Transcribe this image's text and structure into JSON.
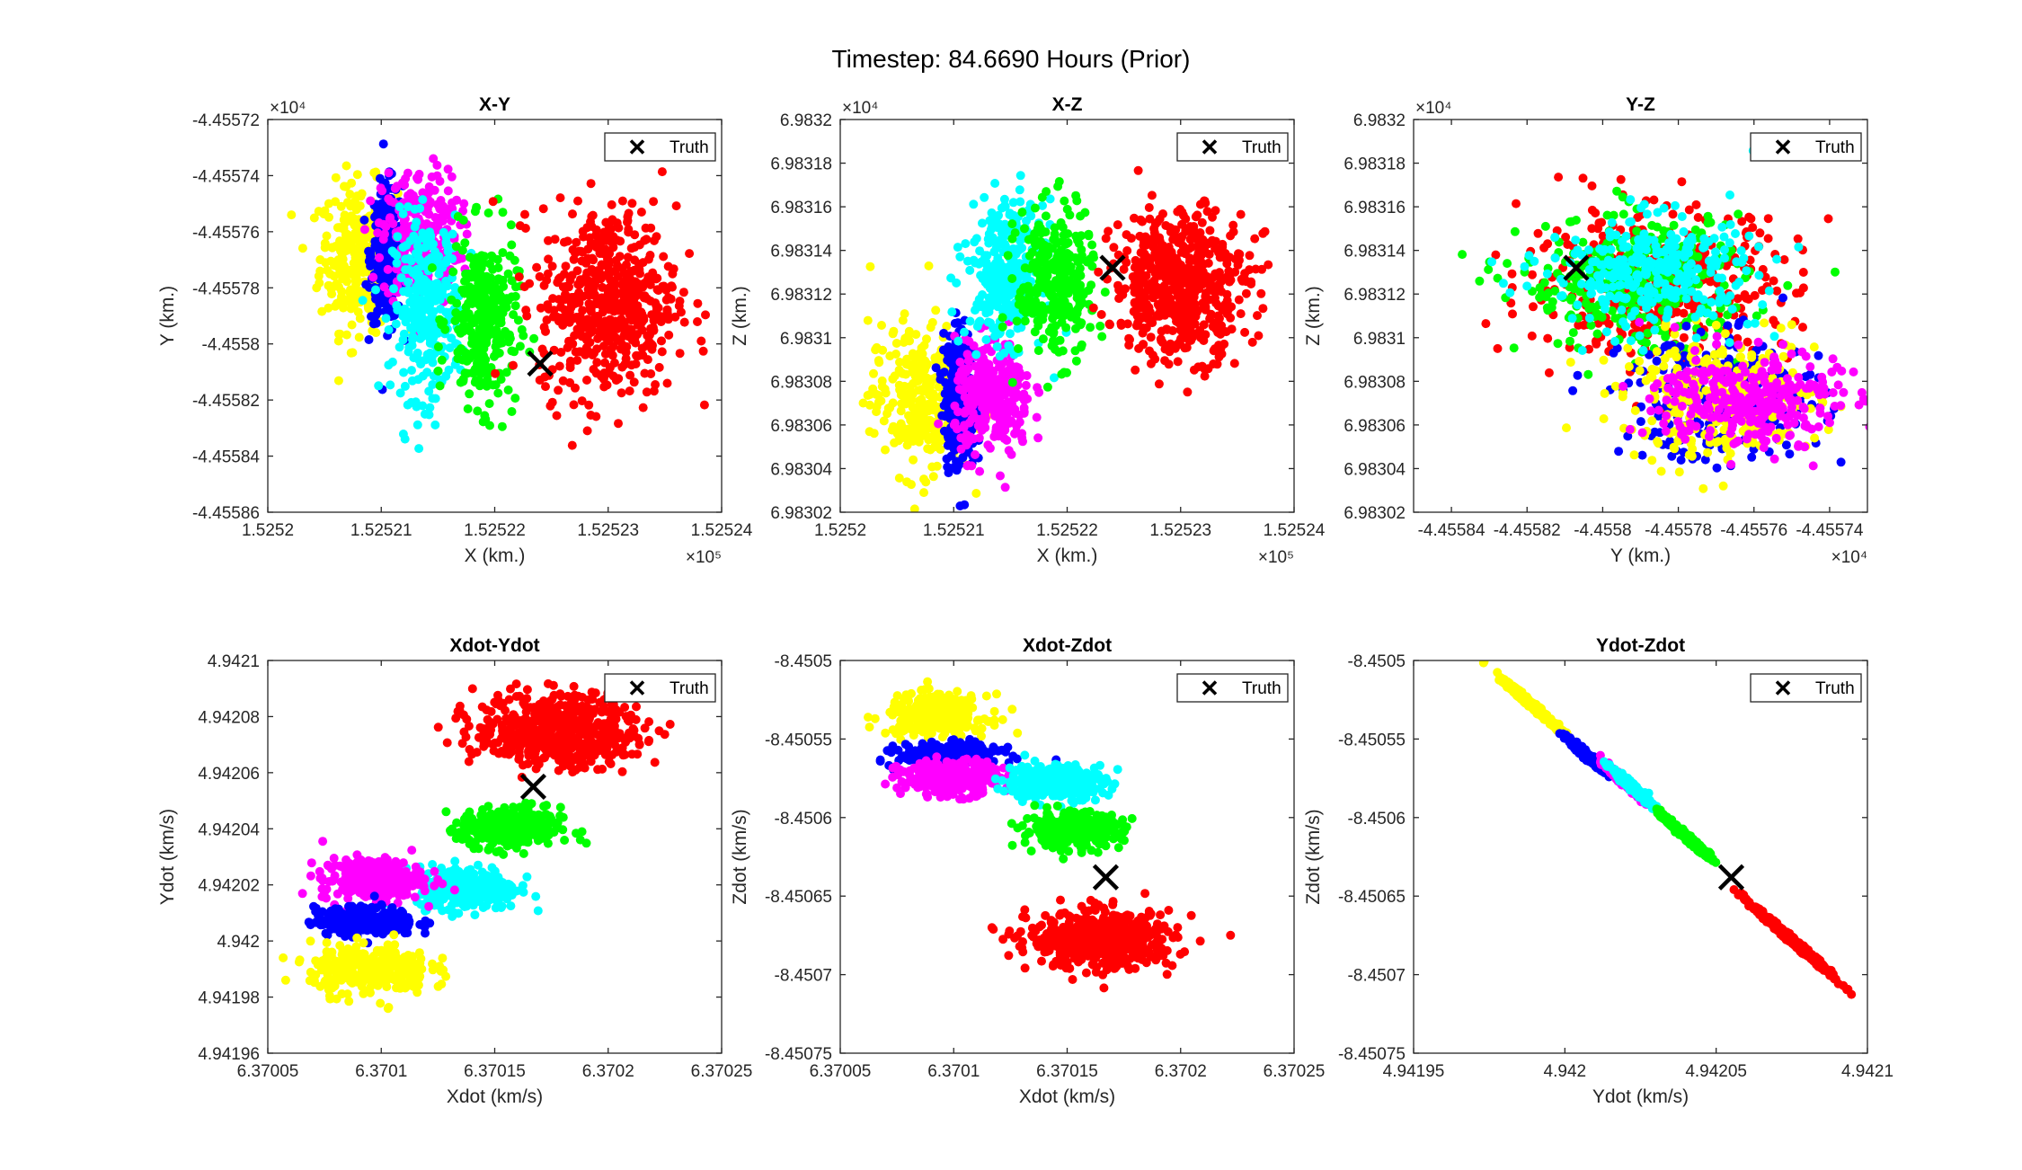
{
  "figure": {
    "title": "Timestep: 84.6690 Hours (Prior)"
  },
  "legend": {
    "label": "Truth",
    "marker": "x-mark-icon",
    "placement": "top-right"
  },
  "series_colors": [
    "#ffff00",
    "#0000ff",
    "#ff00ff",
    "#00ffff",
    "#00ff00",
    "#ff0000"
  ],
  "chart_data": [
    {
      "type": "scatter",
      "title": "X-Y",
      "xlabel": "X (km.)",
      "ylabel": "Y (km.)",
      "xlim": [
        152520,
        152524
      ],
      "ylim": [
        -45558.6,
        -45557.2
      ],
      "xticks": [
        152520,
        152521,
        152522,
        152523,
        152524
      ],
      "xticklabels": [
        "1.5252",
        "1.52521",
        "1.52522",
        "1.52523",
        "1.52524"
      ],
      "yticks": [
        -45558.6,
        -45558.4,
        -45558.2,
        -45558.0,
        -45557.8,
        -45557.6,
        -45557.4,
        -45557.2
      ],
      "yticklabels": [
        "-4.45586",
        "-4.45584",
        "-4.45582",
        "-4.4558",
        "-4.45578",
        "-4.45576",
        "-4.45574",
        "-4.45572"
      ],
      "xexp": "×10⁵",
      "yexp": "×10⁴",
      "truth": [
        152522.4,
        -45558.07
      ],
      "clusters": [
        {
          "color": "#ffff00",
          "center": [
            152520.8,
            -45557.69
          ],
          "sd": [
            0.17,
            0.13
          ],
          "n": 300
        },
        {
          "color": "#0000ff",
          "center": [
            152521.05,
            -45557.68
          ],
          "sd": [
            0.07,
            0.12
          ],
          "n": 300
        },
        {
          "color": "#ff00ff",
          "center": [
            152521.35,
            -45557.62
          ],
          "sd": [
            0.17,
            0.12
          ],
          "n": 300
        },
        {
          "color": "#00ffff",
          "center": [
            152521.4,
            -45557.87
          ],
          "sd": [
            0.15,
            0.16
          ],
          "n": 300
        },
        {
          "color": "#00ff00",
          "center": [
            152521.9,
            -45557.92
          ],
          "sd": [
            0.15,
            0.15
          ],
          "n": 300
        },
        {
          "color": "#ff0000",
          "center": [
            152523.0,
            -45557.85
          ],
          "sd": [
            0.3,
            0.17
          ],
          "n": 550
        }
      ]
    },
    {
      "type": "scatter",
      "title": "X-Z",
      "xlabel": "X (km.)",
      "ylabel": "Z (km.)",
      "xlim": [
        152520,
        152524
      ],
      "ylim": [
        69830.2,
        69832.0
      ],
      "xticks": [
        152520,
        152521,
        152522,
        152523,
        152524
      ],
      "xticklabels": [
        "1.5252",
        "1.52521",
        "1.52522",
        "1.52523",
        "1.52524"
      ],
      "yticks": [
        69830.2,
        69830.4,
        69830.6,
        69830.8,
        69831.0,
        69831.2,
        69831.4,
        69831.6,
        69831.8,
        69832.0
      ],
      "yticklabels": [
        "6.98302",
        "6.98304",
        "6.98306",
        "6.98308",
        "6.9831",
        "6.98312",
        "6.98314",
        "6.98316",
        "6.98318",
        "6.9832"
      ],
      "xexp": "×10⁵",
      "yexp": "×10⁴",
      "truth": [
        152522.4,
        69831.32
      ],
      "clusters": [
        {
          "color": "#ffff00",
          "center": [
            152520.7,
            69830.72
          ],
          "sd": [
            0.22,
            0.17
          ],
          "n": 300
        },
        {
          "color": "#0000ff",
          "center": [
            152521.05,
            69830.72
          ],
          "sd": [
            0.07,
            0.16
          ],
          "n": 300
        },
        {
          "color": "#ff00ff",
          "center": [
            152521.35,
            69830.72
          ],
          "sd": [
            0.17,
            0.13
          ],
          "n": 300
        },
        {
          "color": "#00ffff",
          "center": [
            152521.45,
            69831.3
          ],
          "sd": [
            0.17,
            0.16
          ],
          "n": 300
        },
        {
          "color": "#00ff00",
          "center": [
            152521.9,
            69831.25
          ],
          "sd": [
            0.17,
            0.17
          ],
          "n": 300
        },
        {
          "color": "#ff0000",
          "center": [
            152523.0,
            69831.25
          ],
          "sd": [
            0.3,
            0.17
          ],
          "n": 550
        }
      ]
    },
    {
      "type": "scatter",
      "title": "Y-Z",
      "xlabel": "Y (km.)",
      "ylabel": "Z (km.)",
      "xlim": [
        -45558.5,
        -45557.3
      ],
      "ylim": [
        69830.2,
        69832.0
      ],
      "xticks": [
        -45558.4,
        -45558.2,
        -45558.0,
        -45557.8,
        -45557.6,
        -45557.4
      ],
      "xticklabels": [
        "-4.45584",
        "-4.45582",
        "-4.4558",
        "-4.45578",
        "-4.45576",
        "-4.45574"
      ],
      "yticks": [
        69830.2,
        69830.4,
        69830.6,
        69830.8,
        69831.0,
        69831.2,
        69831.4,
        69831.6,
        69831.8,
        69832.0
      ],
      "yticklabels": [
        "6.98302",
        "6.98304",
        "6.98306",
        "6.98308",
        "6.9831",
        "6.98312",
        "6.98314",
        "6.98316",
        "6.98318",
        "6.9832"
      ],
      "xexp": "×10⁴",
      "yexp": "×10⁴",
      "truth": [
        -45558.07,
        69831.32
      ],
      "clusters": [
        {
          "color": "#ff0000",
          "center": [
            -45557.85,
            69831.25
          ],
          "sd": [
            0.18,
            0.17
          ],
          "n": 400
        },
        {
          "color": "#00ff00",
          "center": [
            -45557.92,
            69831.25
          ],
          "sd": [
            0.15,
            0.15
          ],
          "n": 300
        },
        {
          "color": "#0000ff",
          "center": [
            -45557.68,
            69830.72
          ],
          "sd": [
            0.13,
            0.14
          ],
          "n": 300
        },
        {
          "color": "#ffff00",
          "center": [
            -45557.69,
            69830.72
          ],
          "sd": [
            0.13,
            0.14
          ],
          "n": 300
        },
        {
          "color": "#ff00ff",
          "center": [
            -45557.62,
            69830.72
          ],
          "sd": [
            0.12,
            0.11
          ],
          "n": 300
        },
        {
          "color": "#00ffff",
          "center": [
            -45557.87,
            69831.3
          ],
          "sd": [
            0.14,
            0.13
          ],
          "n": 300
        }
      ]
    },
    {
      "type": "scatter",
      "title": "Xdot-Ydot",
      "xlabel": "Xdot (km/s)",
      "ylabel": "Ydot (km/s)",
      "xlim": [
        6.37005,
        6.37025
      ],
      "ylim": [
        4.94196,
        4.9421
      ],
      "xticks": [
        6.37005,
        6.3701,
        6.37015,
        6.3702,
        6.37025
      ],
      "xticklabels": [
        "6.37005",
        "6.3701",
        "6.37015",
        "6.3702",
        "6.37025"
      ],
      "yticks": [
        4.94196,
        4.94198,
        4.942,
        4.94202,
        4.94204,
        4.94206,
        4.94208,
        4.9421
      ],
      "yticklabels": [
        "4.94196",
        "4.94198",
        "4.942",
        "4.94202",
        "4.94204",
        "4.94206",
        "4.94208",
        "4.9421"
      ],
      "xexp": "",
      "yexp": "",
      "truth": [
        6.370167,
        4.942055
      ],
      "clusters": [
        {
          "color": "#ff0000",
          "center": [
            6.370178,
            4.942075
          ],
          "sd": [
            1.8e-05,
            6.5e-06
          ],
          "n": 550
        },
        {
          "color": "#00ff00",
          "center": [
            6.370157,
            4.94204
          ],
          "sd": [
            1.1e-05,
            3.8e-06
          ],
          "n": 300
        },
        {
          "color": "#00ffff",
          "center": [
            6.370138,
            4.942019
          ],
          "sd": [
            1.1e-05,
            3.8e-06
          ],
          "n": 300
        },
        {
          "color": "#ff00ff",
          "center": [
            6.370096,
            4.942022
          ],
          "sd": [
            1.1e-05,
            3.8e-06
          ],
          "n": 300
        },
        {
          "color": "#0000ff",
          "center": [
            6.370093,
            4.942007
          ],
          "sd": [
            1.1e-05,
            2.5e-06
          ],
          "n": 300
        },
        {
          "color": "#ffff00",
          "center": [
            6.370095,
            4.94199
          ],
          "sd": [
            1.3e-05,
            4.5e-06
          ],
          "n": 300
        }
      ]
    },
    {
      "type": "scatter",
      "title": "Xdot-Zdot",
      "xlabel": "Xdot (km/s)",
      "ylabel": "Zdot (km/s)",
      "xlim": [
        6.37005,
        6.37025
      ],
      "ylim": [
        -8.45075,
        -8.4505
      ],
      "xticks": [
        6.37005,
        6.3701,
        6.37015,
        6.3702,
        6.37025
      ],
      "xticklabels": [
        "6.37005",
        "6.3701",
        "6.37015",
        "6.3702",
        "6.37025"
      ],
      "yticks": [
        -8.45075,
        -8.4507,
        -8.45065,
        -8.4506,
        -8.45055,
        -8.4505
      ],
      "yticklabels": [
        "-8.45075",
        "-8.4507",
        "-8.45065",
        "-8.4506",
        "-8.45055",
        "-8.4505"
      ],
      "xexp": "",
      "yexp": "",
      "truth": [
        6.370167,
        -8.450638
      ],
      "clusters": [
        {
          "color": "#ffff00",
          "center": [
            6.370093,
            -8.450535
          ],
          "sd": [
            1.1e-05,
            6.5e-06
          ],
          "n": 300
        },
        {
          "color": "#0000ff",
          "center": [
            6.370098,
            -8.45056
          ],
          "sd": [
            1.1e-05,
            3.5e-06
          ],
          "n": 300
        },
        {
          "color": "#ff00ff",
          "center": [
            6.370098,
            -8.450575
          ],
          "sd": [
            1.1e-05,
            5.5e-06
          ],
          "n": 300
        },
        {
          "color": "#00ffff",
          "center": [
            6.370145,
            -8.450577
          ],
          "sd": [
            1.1e-05,
            5.5e-06
          ],
          "n": 300
        },
        {
          "color": "#00ff00",
          "center": [
            6.370152,
            -8.450608
          ],
          "sd": [
            1.1e-05,
            5.5e-06
          ],
          "n": 300
        },
        {
          "color": "#ff0000",
          "center": [
            6.370165,
            -8.450678
          ],
          "sd": [
            1.6e-05,
            9e-06
          ],
          "n": 550
        }
      ]
    },
    {
      "type": "scatter",
      "title": "Ydot-Zdot",
      "xlabel": "Ydot (km/s)",
      "ylabel": "Zdot (km/s)",
      "xlim": [
        4.94195,
        4.9421
      ],
      "ylim": [
        -8.45075,
        -8.4505
      ],
      "xticks": [
        4.94195,
        4.942,
        4.94205,
        4.9421
      ],
      "xticklabels": [
        "4.94195",
        "4.942",
        "4.94205",
        "4.9421"
      ],
      "yticks": [
        -8.45075,
        -8.4507,
        -8.45065,
        -8.4506,
        -8.45055,
        -8.4505
      ],
      "yticklabels": [
        "-8.45075",
        "-8.4507",
        "-8.45065",
        "-8.4506",
        "-8.45055",
        "-8.4505"
      ],
      "xexp": "",
      "yexp": "",
      "truth": [
        4.942055,
        -8.450638
      ],
      "line": {
        "p0": [
          4.94199,
          -8.45053
        ],
        "slope": -1.67,
        "perp": 1.2e-06
      },
      "clusters": [
        {
          "color": "#ffff00",
          "center": [
            4.94199,
            -8.45053
          ],
          "sd": [
            5.5e-06,
            6.5e-06
          ],
          "n": 300
        },
        {
          "color": "#0000ff",
          "center": [
            4.942007,
            -8.45056
          ],
          "sd": [
            2.8e-06,
            4e-06
          ],
          "n": 300
        },
        {
          "color": "#ff00ff",
          "center": [
            4.94202,
            -8.450578
          ],
          "sd": [
            3.5e-06,
            5e-06
          ],
          "n": 300
        },
        {
          "color": "#00ffff",
          "center": [
            4.942022,
            -8.45058
          ],
          "sd": [
            3e-06,
            4.5e-06
          ],
          "n": 300
        },
        {
          "color": "#00ff00",
          "center": [
            4.94204,
            -8.450612
          ],
          "sd": [
            4e-06,
            5.5e-06
          ],
          "n": 300
        },
        {
          "color": "#ff0000",
          "center": [
            4.942075,
            -8.450678
          ],
          "sd": [
            6.5e-06,
            9.5e-06
          ],
          "n": 500
        }
      ]
    }
  ]
}
